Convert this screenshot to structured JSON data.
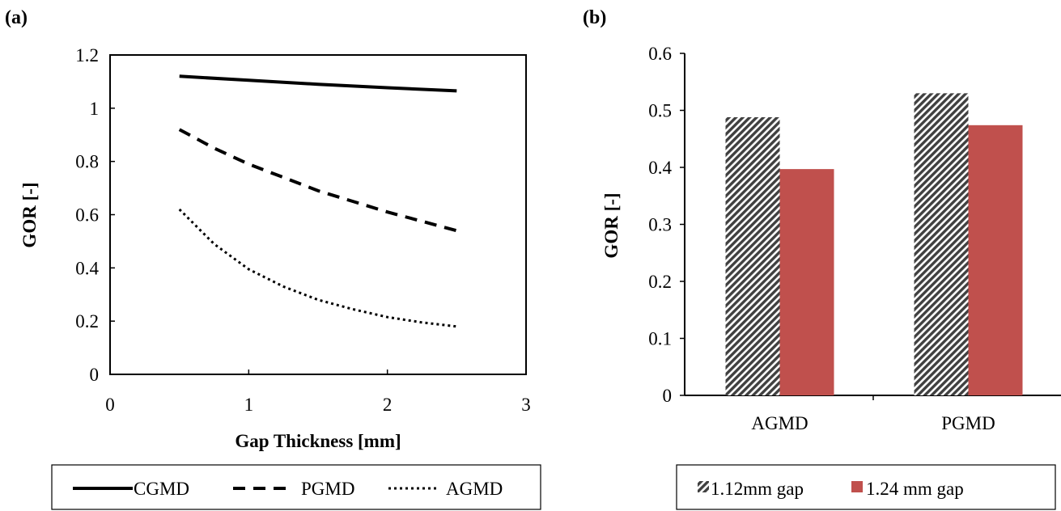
{
  "chart_data": [
    {
      "panel_label": "(a)",
      "type": "line",
      "xlabel": "Gap Thickness [mm]",
      "ylabel": "GOR [-]",
      "xlim": [
        0,
        3
      ],
      "ylim": [
        0,
        1.2
      ],
      "x_ticks": [
        "0",
        "1",
        "2",
        "3"
      ],
      "y_ticks": [
        "0",
        "0.2",
        "0.4",
        "0.6",
        "0.8",
        "1",
        "1.2"
      ],
      "grid": false,
      "legend_position": "bottom",
      "series": [
        {
          "name": "CGMD",
          "style": "solid",
          "x": [
            0.5,
            1.0,
            1.5,
            2.0,
            2.5
          ],
          "y": [
            1.12,
            1.105,
            1.09,
            1.077,
            1.065
          ]
        },
        {
          "name": "PGMD",
          "style": "dashed",
          "x": [
            0.5,
            0.75,
            1.0,
            1.25,
            1.5,
            1.75,
            2.0,
            2.25,
            2.5
          ],
          "y": [
            0.92,
            0.85,
            0.79,
            0.74,
            0.69,
            0.65,
            0.61,
            0.575,
            0.54
          ]
        },
        {
          "name": "AGMD",
          "style": "dotted",
          "x": [
            0.5,
            0.75,
            1.0,
            1.25,
            1.5,
            1.75,
            2.0,
            2.25,
            2.5
          ],
          "y": [
            0.62,
            0.49,
            0.395,
            0.33,
            0.28,
            0.245,
            0.215,
            0.195,
            0.18
          ]
        }
      ]
    },
    {
      "panel_label": "(b)",
      "type": "bar",
      "ylabel": "GOR [-]",
      "ylim": [
        0,
        0.6
      ],
      "y_ticks": [
        "0",
        "0.1",
        "0.2",
        "0.3",
        "0.4",
        "0.5",
        "0.6"
      ],
      "categories": [
        "AGMD",
        "PGMD"
      ],
      "grid": false,
      "legend_position": "bottom",
      "series": [
        {
          "name": "1.12mm gap",
          "fill": "hatched",
          "color": "#404040",
          "values": [
            0.488,
            0.53
          ]
        },
        {
          "name": "1.24 mm gap",
          "fill": "solid",
          "color": "#C0504D",
          "values": [
            0.397,
            0.474
          ]
        }
      ]
    }
  ]
}
